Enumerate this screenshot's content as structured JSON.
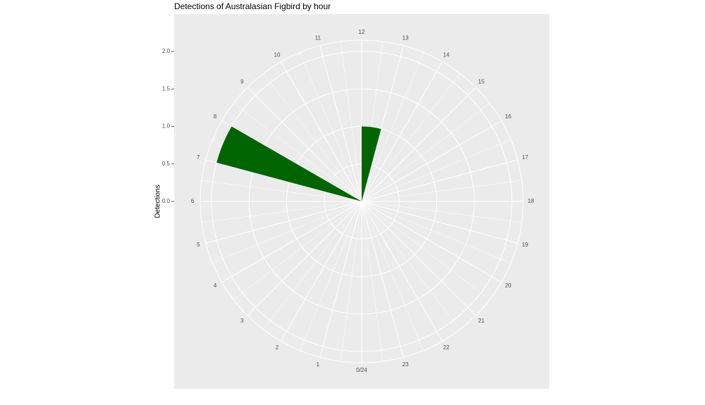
{
  "chart_data": {
    "type": "polar-bar",
    "title": "Detections of Australasian Figbird by hour",
    "y_label": "Detections",
    "x": [
      7,
      12
    ],
    "values": [
      2,
      1
    ],
    "color": "#006400",
    "xlim": [
      0,
      24
    ],
    "xticks": [
      {
        "value": 0,
        "label": "0/24"
      },
      1,
      2,
      3,
      4,
      5,
      6,
      7,
      8,
      9,
      10,
      11,
      12,
      13,
      14,
      15,
      16,
      17,
      18,
      19,
      20,
      21,
      22,
      23
    ],
    "ylim": [
      0,
      2.15
    ],
    "yticks": [
      {
        "value": 0,
        "label": "0.0"
      },
      0.5,
      {
        "value": 1,
        "label": "1.0"
      },
      1.5,
      {
        "value": 2,
        "label": "2.0"
      }
    ],
    "grid": true
  }
}
